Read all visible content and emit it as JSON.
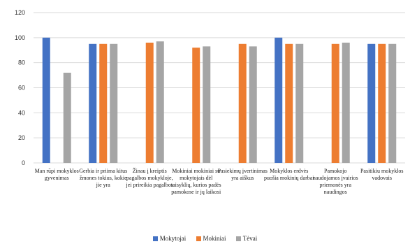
{
  "chart_data": {
    "type": "bar",
    "title": "",
    "ylim": [
      0,
      120
    ],
    "yticks": [
      0,
      20,
      40,
      60,
      80,
      100,
      120
    ],
    "grid": true,
    "legend_position": "bottom",
    "categories": [
      "Man rūpi mokyklos gyvenimas",
      "Gerbia ir priima kitus žmones tokius, kokie jie yra",
      "Žinau į kreiptis pagalbos mokykloje, jei prireikia pagalbos",
      "Mokiniai mokiniai su mokytojais dėl taisyklių, kurios padės pamokose ir jų laikosi",
      "Pasiekimų įvertinimas yra aiškus",
      "Mokyklos erdvės puošia mokinių darbai",
      "Pamokojo naudojamos įvairios priemonės yra naudingos",
      "Pasitikiu mokyklos vadovais"
    ],
    "series": [
      {
        "name": "Mokytojai",
        "color": "#4472c4",
        "values": [
          100,
          95,
          0,
          0,
          0,
          100,
          0,
          95
        ]
      },
      {
        "name": "Mokiniai",
        "color": "#ed7d31",
        "values": [
          0,
          95,
          96,
          92,
          95,
          95,
          95,
          95
        ]
      },
      {
        "name": "Tėvai",
        "color": "#a5a5a5",
        "values": [
          72,
          95,
          97,
          93,
          93,
          95,
          96,
          95
        ]
      }
    ]
  }
}
